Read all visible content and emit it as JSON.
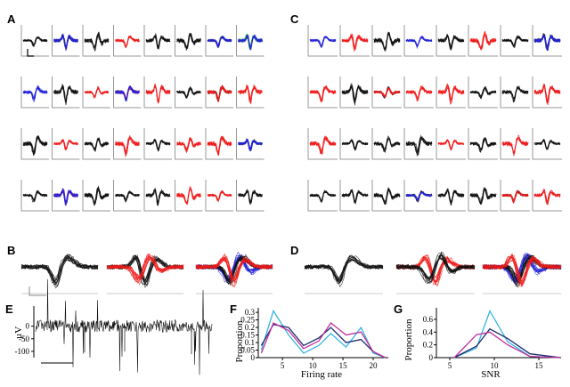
{
  "panel_labels": {
    "A": "A",
    "B": "B",
    "C": "C",
    "D": "D",
    "E": "E",
    "F": "F",
    "G": "G"
  },
  "colors": {
    "black": "#111111",
    "red": "#ee1c1c",
    "blue": "#2424d8",
    "green": "#22cc22",
    "purple": "#9a2a9a",
    "cyan": "#33b5e5",
    "navy": "#1b2a6b",
    "magenta": "#c0309a",
    "axis": "#999999"
  },
  "grid_A_colors": [
    [
      "k",
      "kb",
      "k",
      "r",
      "k",
      "k",
      "kb",
      "gb"
    ],
    [
      "b",
      "k",
      "r",
      "rb",
      "r",
      "k",
      "kr",
      "r"
    ],
    [
      "k",
      "r",
      "k",
      "r",
      "k",
      "r",
      "r",
      "kb"
    ],
    [
      "k",
      "rb",
      "k",
      "k",
      "k",
      "r",
      "r",
      "k"
    ]
  ],
  "grid_C_colors": [
    [
      "b",
      "r",
      "k",
      "b",
      "k",
      "r",
      "k",
      "kb"
    ],
    [
      "r",
      "k",
      "kr",
      "r",
      "r",
      "k",
      "k",
      "r"
    ],
    [
      "r",
      "k",
      "k",
      "k",
      "r",
      "k",
      "r",
      "k"
    ],
    [
      "k",
      "k",
      "k",
      "kb",
      "k",
      "k",
      "kr",
      "r"
    ]
  ],
  "row_B_colors": [
    "k",
    "kr",
    "bkr"
  ],
  "row_D_colors": [
    "k",
    "rk",
    "bkr"
  ],
  "chart_data": [
    {
      "panel": "E",
      "type": "line",
      "ylabel": "µV",
      "yticks": [
        0,
        -50,
        -100
      ],
      "ylim": [
        -125,
        80
      ],
      "description_series": "raw extracellular trace"
    },
    {
      "panel": "F",
      "type": "line",
      "xlabel": "Firing rate",
      "ylabel": "Proportion",
      "xticks": [
        5,
        10,
        15,
        20
      ],
      "yticks": [
        0,
        0.05,
        0.1,
        0.15,
        0.2,
        0.25,
        0.3
      ],
      "xlim": [
        1,
        22.5
      ],
      "ylim": [
        0,
        0.33
      ],
      "x": [
        1.5,
        3.5,
        6,
        8.5,
        11,
        13,
        15.5,
        18,
        20,
        22
      ],
      "series": [
        {
          "color": "cyan",
          "values": [
            0.05,
            0.31,
            0.15,
            0.03,
            0.08,
            0.16,
            0.07,
            0.2,
            0.03,
            0.0
          ]
        },
        {
          "color": "navy",
          "values": [
            0.08,
            0.22,
            0.2,
            0.08,
            0.13,
            0.2,
            0.1,
            0.12,
            0.04,
            0.0
          ]
        },
        {
          "color": "magenta",
          "values": [
            0.03,
            0.23,
            0.18,
            0.06,
            0.11,
            0.23,
            0.15,
            0.17,
            0.04,
            0.0
          ]
        }
      ]
    },
    {
      "panel": "G",
      "type": "line",
      "xlabel": "SNR",
      "ylabel": "Proportion",
      "xticks": [
        5,
        10,
        15
      ],
      "yticks": [
        0,
        0.2,
        0.4,
        0.6
      ],
      "xlim": [
        3.5,
        17.5
      ],
      "ylim": [
        0,
        0.78
      ],
      "x": [
        5.5,
        8,
        9.5,
        11.5,
        14,
        17.5
      ],
      "series": [
        {
          "color": "cyan",
          "values": [
            0.0,
            0.15,
            0.73,
            0.25,
            0.02,
            0.0
          ]
        },
        {
          "color": "navy",
          "values": [
            0.0,
            0.18,
            0.45,
            0.3,
            0.06,
            0.0
          ]
        },
        {
          "color": "magenta",
          "values": [
            0.0,
            0.36,
            0.4,
            0.2,
            0.02,
            0.0
          ]
        }
      ]
    }
  ]
}
